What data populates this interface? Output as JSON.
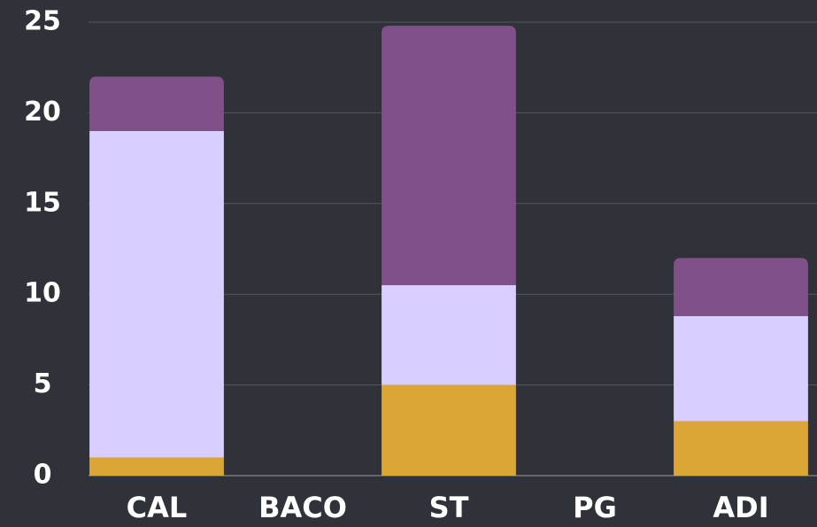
{
  "chart_data": {
    "type": "stacked-bar",
    "categories": [
      "CAL",
      "BACO",
      "ST",
      "PG",
      "ADI"
    ],
    "series": [
      {
        "color": "#dca637",
        "values": [
          1,
          0,
          5,
          0,
          3
        ]
      },
      {
        "color": "#d8ceff",
        "values": [
          18,
          0,
          5.5,
          0,
          5.8
        ]
      },
      {
        "color": "#7f5188",
        "values": [
          3,
          0,
          14.3,
          0,
          3.2
        ]
      }
    ],
    "ylim": [
      0,
      25
    ],
    "yticks": [
      0,
      5,
      10,
      15,
      20,
      25
    ],
    "grid": true
  }
}
